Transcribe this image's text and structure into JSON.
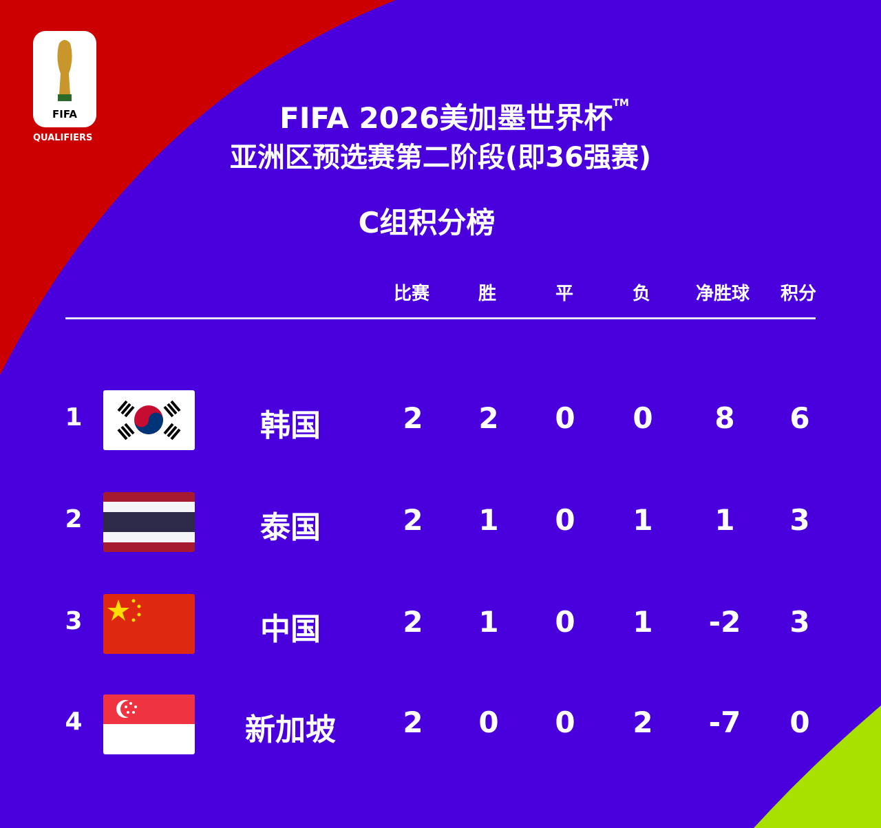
{
  "logo": {
    "badge": "FIFA",
    "subtitle": "QUALIFIERS"
  },
  "title": {
    "line1": "FIFA 2026美加墨世界杯",
    "tm": "TM",
    "line2": "亚洲区预选赛第二阶段(即36强赛)",
    "subtitle": "C组积分榜"
  },
  "colors": {
    "background": "#4a00dc",
    "corner_top_left": "#cc0000",
    "corner_bottom_right": "#a8e000"
  },
  "table": {
    "columns": [
      "比赛",
      "胜",
      "平",
      "负",
      "净胜球",
      "积分"
    ],
    "rows": [
      {
        "rank": "1",
        "flag": "korea-flag",
        "team": "韩国",
        "played": "2",
        "won": "2",
        "drawn": "0",
        "lost": "0",
        "gd": "8",
        "pts": "6"
      },
      {
        "rank": "2",
        "flag": "thailand-flag",
        "team": "泰国",
        "played": "2",
        "won": "1",
        "drawn": "0",
        "lost": "1",
        "gd": "1",
        "pts": "3"
      },
      {
        "rank": "3",
        "flag": "china-flag",
        "team": "中国",
        "played": "2",
        "won": "1",
        "drawn": "0",
        "lost": "1",
        "gd": "-2",
        "pts": "3"
      },
      {
        "rank": "4",
        "flag": "singapore-flag",
        "team": "新加坡",
        "played": "2",
        "won": "0",
        "drawn": "0",
        "lost": "2",
        "gd": "-7",
        "pts": "0"
      }
    ]
  }
}
